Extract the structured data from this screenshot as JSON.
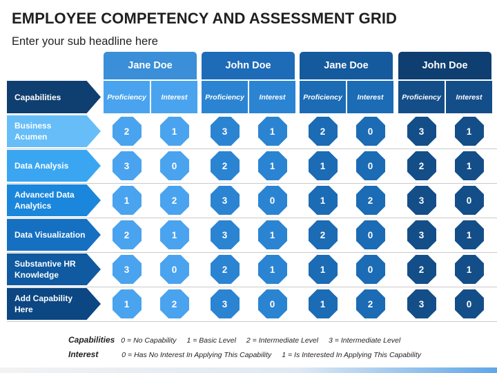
{
  "title": "EMPLOYEE COMPETENCY AND ASSESSMENT GRID",
  "subtitle": "Enter your sub headline here",
  "capabilities_header": "Capabilities",
  "employees": [
    {
      "name": "Jane Doe",
      "color": "#3a8fd8",
      "sub_color": "#4aa3ee"
    },
    {
      "name": "John Doe",
      "color": "#1e6bb8",
      "sub_color": "#2b84d2"
    },
    {
      "name": "Jane Doe",
      "color": "#155a9c",
      "sub_color": "#1b6bb5"
    },
    {
      "name": "John Doe",
      "color": "#0f3e70",
      "sub_color": "#144e88"
    }
  ],
  "columns": [
    "Proficiency",
    "Interest"
  ],
  "capabilities": [
    {
      "label": "Business Acumen",
      "color": "#66bdf8",
      "scores": [
        2,
        1,
        3,
        1,
        2,
        0,
        3,
        1
      ]
    },
    {
      "label": "Data Analysis",
      "color": "#3aa6f2",
      "scores": [
        3,
        0,
        2,
        1,
        1,
        0,
        2,
        1
      ]
    },
    {
      "label": "Advanced Data Analytics",
      "color": "#1a87dc",
      "scores": [
        1,
        2,
        3,
        0,
        1,
        2,
        3,
        0
      ]
    },
    {
      "label": "Data Visualization",
      "color": "#1570c2",
      "scores": [
        2,
        1,
        3,
        1,
        2,
        0,
        3,
        1
      ]
    },
    {
      "label": "Substantive HR Knowledge",
      "color": "#0f5aa0",
      "scores": [
        3,
        0,
        2,
        1,
        1,
        0,
        2,
        1
      ]
    },
    {
      "label": "Add Capability Here",
      "color": "#0c4683",
      "scores": [
        1,
        2,
        3,
        0,
        1,
        2,
        3,
        0
      ]
    }
  ],
  "legend": {
    "capabilities_label": "Capabilities",
    "capabilities_items": [
      "0 = No Capability",
      "1 = Basic Level",
      "2 = Intermediate Level",
      "3 = Intermediate Level"
    ],
    "interest_label": "Interest",
    "interest_items": [
      "0 = Has No Interest In Applying This Capability",
      "1 = Is Interested In Applying This Capability"
    ]
  }
}
